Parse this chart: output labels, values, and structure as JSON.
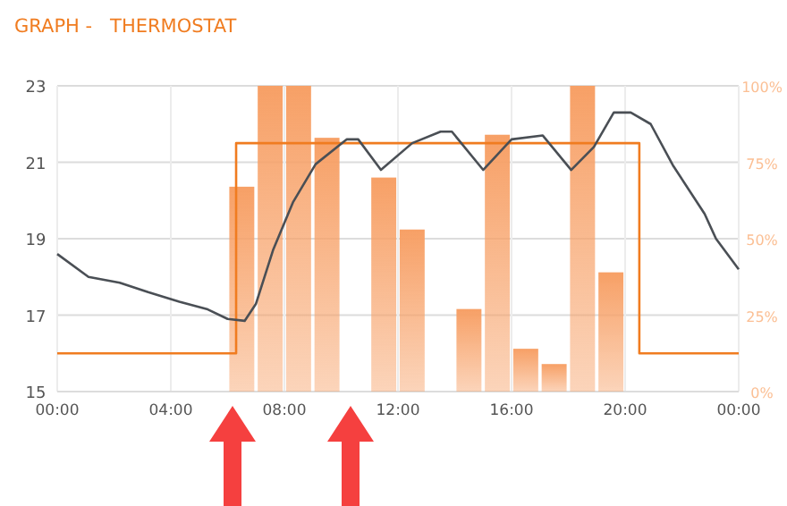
{
  "chart_data": {
    "type": "line",
    "title": "GRAPH -   THERMOSTAT",
    "xlim": [
      0,
      24
    ],
    "xticks": [
      {
        "value": 0,
        "label": "00:00"
      },
      {
        "value": 4,
        "label": "04:00"
      },
      {
        "value": 8,
        "label": "08:00"
      },
      {
        "value": 12,
        "label": "12:00"
      },
      {
        "value": 16,
        "label": "16:00"
      },
      {
        "value": 20,
        "label": "20:00"
      },
      {
        "value": 24,
        "label": "00:00"
      }
    ],
    "ylim": [
      15,
      23
    ],
    "yticks": [
      15,
      17,
      19,
      21,
      23
    ],
    "y2lim": [
      0,
      100
    ],
    "y2ticks": [
      {
        "value": 0,
        "label": "0%"
      },
      {
        "value": 25,
        "label": "25%"
      },
      {
        "value": 50,
        "label": "50%"
      },
      {
        "value": 75,
        "label": "75%"
      },
      {
        "value": 100,
        "label": "100%"
      }
    ],
    "grid": true,
    "marker": "none",
    "line_style": "solid",
    "series": [
      {
        "type": "bar",
        "axis": "y2",
        "color": "#f7a066",
        "x": [
          6.5,
          7.5,
          8.5,
          9.5,
          11.5,
          12.5,
          14.5,
          15.5,
          16.5,
          17.5,
          18.5,
          19.5
        ],
        "values": [
          67,
          100,
          100,
          83,
          70,
          53,
          27,
          84,
          14,
          9,
          100,
          39
        ]
      },
      {
        "type": "step",
        "color": "#f07c20",
        "x": [
          0,
          6.3,
          20.5,
          24
        ],
        "values": [
          16,
          21.5,
          16,
          16
        ]
      },
      {
        "color": "#4a4f55",
        "x": [
          0,
          1.1,
          2.2,
          3.2,
          4.3,
          5.3,
          6.0,
          6.6,
          7.0,
          7.6,
          8.3,
          9.1,
          10.2,
          10.6,
          11.4,
          12.5,
          13.5,
          13.9,
          15.0,
          16.0,
          17.1,
          18.1,
          18.9,
          19.6,
          20.2,
          20.9,
          21.7,
          22.8,
          23.2,
          24
        ],
        "values": [
          18.6,
          18.0,
          17.85,
          17.6,
          17.35,
          17.15,
          16.9,
          16.85,
          17.3,
          18.7,
          19.95,
          20.95,
          21.6,
          21.6,
          20.8,
          21.5,
          21.8,
          21.8,
          20.8,
          21.6,
          21.7,
          20.8,
          21.4,
          22.3,
          22.3,
          22.0,
          20.9,
          19.65,
          19.0,
          18.2
        ]
      }
    ]
  }
}
